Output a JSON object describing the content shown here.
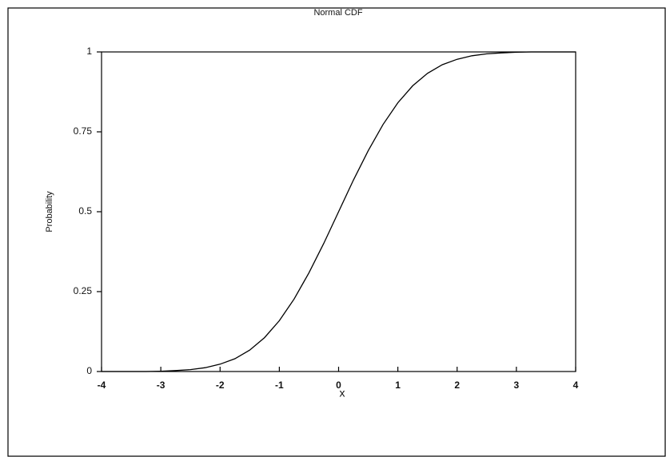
{
  "chart_data": {
    "type": "line",
    "title": "Normal CDF",
    "xlabel": "x",
    "ylabel": "Probability",
    "x": [
      -4,
      -3.75,
      -3.5,
      -3.25,
      -3,
      -2.75,
      -2.5,
      -2.25,
      -2,
      -1.75,
      -1.5,
      -1.25,
      -1,
      -0.75,
      -0.5,
      -0.25,
      0,
      0.25,
      0.5,
      0.75,
      1,
      1.25,
      1.5,
      1.75,
      2,
      2.25,
      2.5,
      2.75,
      3,
      3.25,
      3.5,
      3.75,
      4
    ],
    "series": [
      {
        "name": "Normal CDF",
        "color": "#000000",
        "values": [
          0,
          0,
          0,
          0,
          0.001,
          0.003,
          0.006,
          0.012,
          0.023,
          0.04,
          0.067,
          0.106,
          0.159,
          0.227,
          0.309,
          0.401,
          0.5,
          0.599,
          0.691,
          0.773,
          0.841,
          0.894,
          0.933,
          0.96,
          0.977,
          0.988,
          0.994,
          0.997,
          0.999,
          1,
          1,
          1,
          1
        ]
      }
    ],
    "xlim": [
      -4,
      4
    ],
    "xticks": [
      -4,
      -3,
      -2,
      -1,
      0,
      1,
      2,
      3,
      4
    ],
    "ylim": [
      0,
      1
    ],
    "yticks": [
      0,
      0.25,
      0.5,
      0.75,
      1
    ],
    "grid": false
  }
}
